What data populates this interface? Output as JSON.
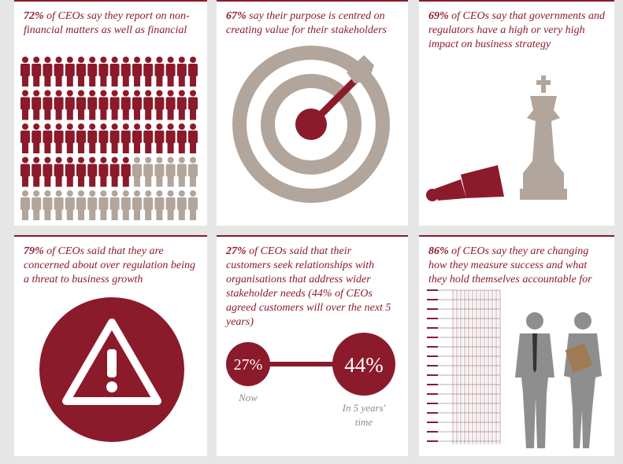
{
  "panels": [
    {
      "highlight": "72%",
      "text": " of CEOs say they report on non-financial matters as well as financial"
    },
    {
      "highlight": "67%",
      "text": " say their purpose is centred on creating value for their stakeholders"
    },
    {
      "highlight": "69%",
      "text": " of CEOs say that governments and regulators have a high or very high impact on business strategy"
    },
    {
      "highlight": "79%",
      "text": " of CEOs said that they are concerned about over regulation being a threat to business growth"
    },
    {
      "highlight": "27%",
      "text": " of CEOs said that their customers seek relationships with organisations that address wider stakeholder needs (44% of CEOs agreed customers will over the next 5 years)"
    },
    {
      "highlight": "86%",
      "text": " of CEOs say they are changing how they measure success and what they hold themselves accountable for"
    }
  ],
  "comparison": {
    "now": {
      "value": "27%",
      "label": "Now"
    },
    "future": {
      "value": "44%",
      "label": "In 5 years' time"
    }
  }
}
